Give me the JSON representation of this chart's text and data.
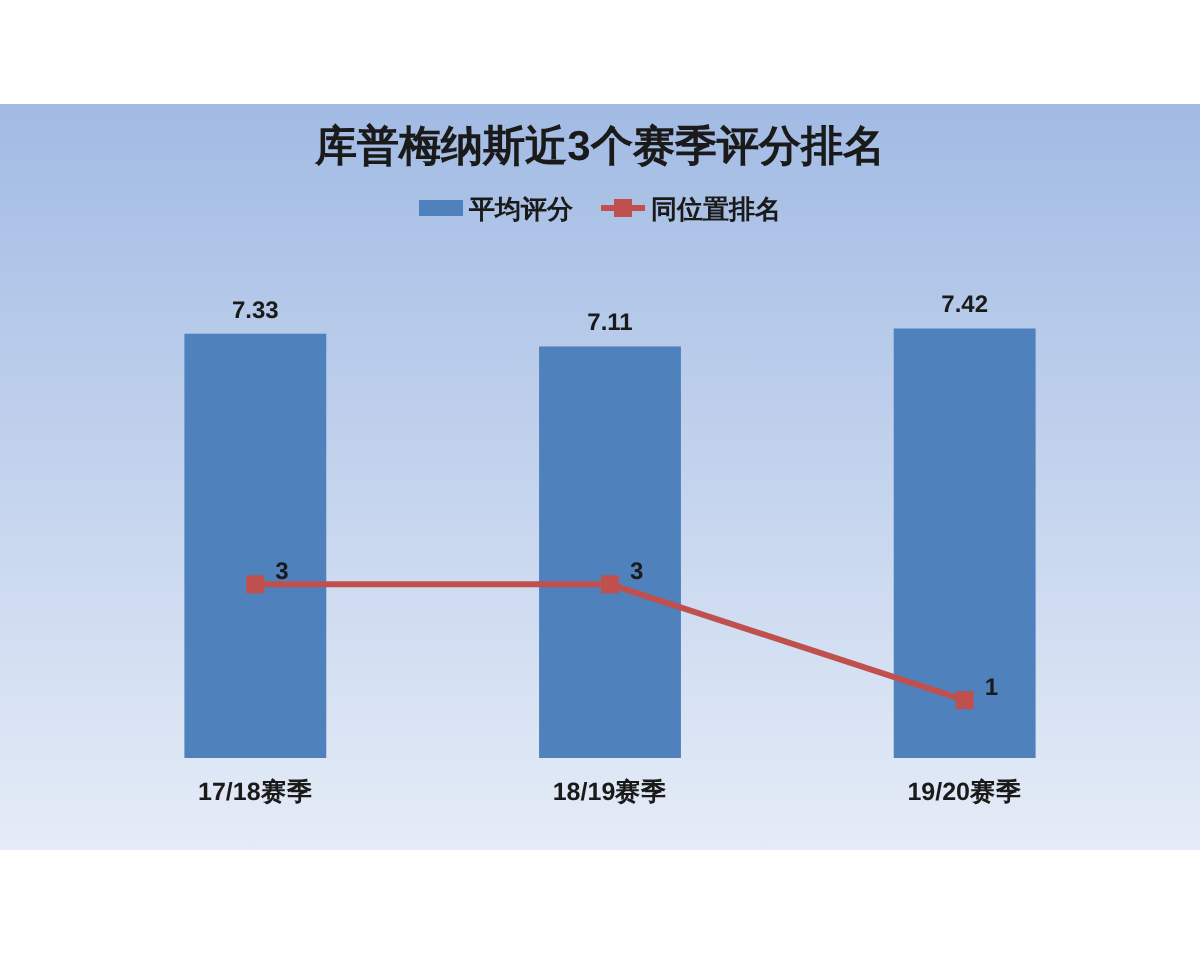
{
  "chart_data": {
    "type": "bar",
    "title": "库普梅纳斯近3个赛季评分排名",
    "categories": [
      "17/18赛季",
      "18/19赛季",
      "19/20赛季"
    ],
    "series": [
      {
        "name": "平均评分",
        "color": "#4f81bd",
        "values": [
          7.33,
          7.11,
          7.42
        ]
      },
      {
        "name": "同位置排名",
        "type": "line",
        "color": "#c0504d",
        "values": [
          3,
          3,
          1
        ]
      }
    ],
    "marker": "square",
    "line_style": "solid",
    "data_labels": true,
    "legend": "top"
  }
}
